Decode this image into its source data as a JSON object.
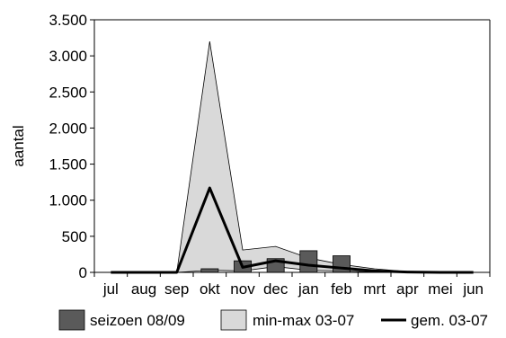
{
  "chart_data": {
    "type": "bar",
    "ylabel": "aantal",
    "ylim": [
      0,
      3500
    ],
    "yticks": [
      0,
      500,
      1000,
      1500,
      2000,
      2500,
      3000,
      3500
    ],
    "ytick_labels": [
      "0",
      "500",
      "1.000",
      "1.500",
      "2.000",
      "2.500",
      "3.000",
      "3.500"
    ],
    "categories": [
      "jul",
      "aug",
      "sep",
      "okt",
      "nov",
      "dec",
      "jan",
      "feb",
      "mrt",
      "apr",
      "mei",
      "jun"
    ],
    "series": [
      {
        "name": "seizoen 08/09",
        "kind": "bar",
        "values": [
          0,
          0,
          0,
          50,
          160,
          190,
          300,
          230,
          0,
          0,
          0,
          0
        ]
      },
      {
        "name": "min-max 03-07",
        "kind": "range",
        "min": [
          0,
          0,
          0,
          30,
          20,
          80,
          30,
          20,
          5,
          0,
          0,
          0
        ],
        "max": [
          0,
          0,
          0,
          3200,
          310,
          360,
          200,
          110,
          50,
          10,
          5,
          0
        ]
      },
      {
        "name": "gem. 03-07",
        "kind": "line",
        "values": [
          0,
          0,
          0,
          1170,
          70,
          160,
          100,
          60,
          20,
          5,
          0,
          0
        ]
      }
    ],
    "grid": false,
    "legend_position": "bottom",
    "colors": {
      "bar": "#5a5a5a",
      "band": "#d9d9d9",
      "line": "#000000"
    }
  }
}
